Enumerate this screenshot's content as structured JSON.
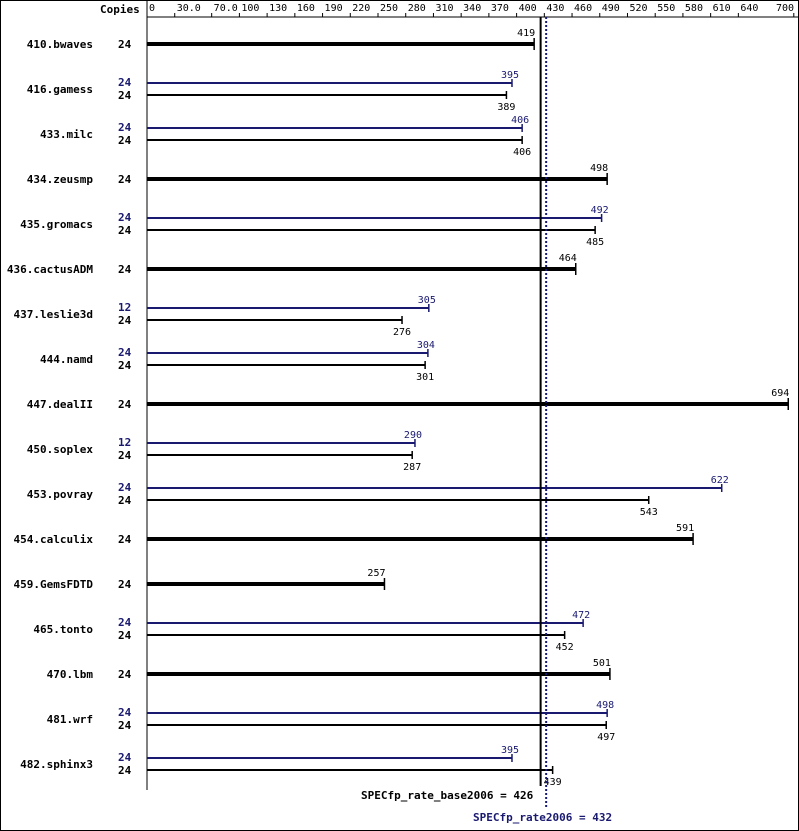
{
  "chart_data": {
    "type": "bar",
    "copies_header": "Copies",
    "axis_ticks": [
      "0",
      "30.0",
      "70.0",
      "100",
      "130",
      "160",
      "190",
      "220",
      "250",
      "280",
      "310",
      "340",
      "370",
      "400",
      "430",
      "460",
      "490",
      "520",
      "550",
      "580",
      "610",
      "640",
      "700"
    ],
    "xlim": [
      0,
      700
    ],
    "colors": {
      "base": "#000000",
      "peak": "#191970"
    },
    "benchmarks": [
      {
        "name": "410.bwaves",
        "base": {
          "copies": "24",
          "value": 419
        },
        "peak": null
      },
      {
        "name": "416.gamess",
        "base": {
          "copies": "24",
          "value": 389
        },
        "peak": {
          "copies": "24",
          "value": 395
        }
      },
      {
        "name": "433.milc",
        "base": {
          "copies": "24",
          "value": 406
        },
        "peak": {
          "copies": "24",
          "value": 406
        }
      },
      {
        "name": "434.zeusmp",
        "base": {
          "copies": "24",
          "value": 498
        },
        "peak": null
      },
      {
        "name": "435.gromacs",
        "base": {
          "copies": "24",
          "value": 485
        },
        "peak": {
          "copies": "24",
          "value": 492
        }
      },
      {
        "name": "436.cactusADM",
        "base": {
          "copies": "24",
          "value": 464
        },
        "peak": null
      },
      {
        "name": "437.leslie3d",
        "base": {
          "copies": "24",
          "value": 276
        },
        "peak": {
          "copies": "12",
          "value": 305
        }
      },
      {
        "name": "444.namd",
        "base": {
          "copies": "24",
          "value": 301
        },
        "peak": {
          "copies": "24",
          "value": 304
        }
      },
      {
        "name": "447.dealII",
        "base": {
          "copies": "24",
          "value": 694
        },
        "peak": null
      },
      {
        "name": "450.soplex",
        "base": {
          "copies": "24",
          "value": 287
        },
        "peak": {
          "copies": "12",
          "value": 290
        }
      },
      {
        "name": "453.povray",
        "base": {
          "copies": "24",
          "value": 543
        },
        "peak": {
          "copies": "24",
          "value": 622
        }
      },
      {
        "name": "454.calculix",
        "base": {
          "copies": "24",
          "value": 591
        },
        "peak": null
      },
      {
        "name": "459.GemsFDTD",
        "base": {
          "copies": "24",
          "value": 257
        },
        "peak": null
      },
      {
        "name": "465.tonto",
        "base": {
          "copies": "24",
          "value": 452
        },
        "peak": {
          "copies": "24",
          "value": 472
        }
      },
      {
        "name": "470.lbm",
        "base": {
          "copies": "24",
          "value": 501
        },
        "peak": null
      },
      {
        "name": "481.wrf",
        "base": {
          "copies": "24",
          "value": 497
        },
        "peak": {
          "copies": "24",
          "value": 498
        }
      },
      {
        "name": "482.sphinx3",
        "base": {
          "copies": "24",
          "value": 439
        },
        "peak": {
          "copies": "24",
          "value": 395
        }
      }
    ],
    "base_metric": {
      "label": "SPECfp_rate_base2006 = 426",
      "value": 426
    },
    "peak_metric": {
      "label": "SPECfp_rate2006 = 432",
      "value": 432
    }
  }
}
